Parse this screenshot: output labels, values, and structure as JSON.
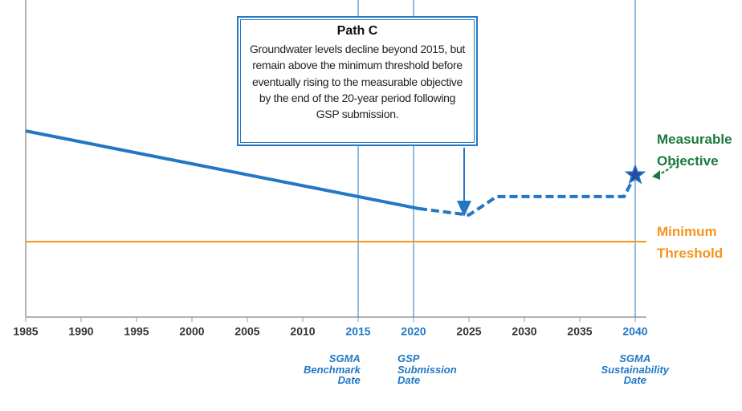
{
  "chart_data": {
    "type": "line",
    "xlim": [
      1985,
      2040
    ],
    "ylim": [
      0,
      100
    ],
    "xticks": [
      1985,
      1990,
      1995,
      2000,
      2005,
      2010,
      2015,
      2020,
      2025,
      2030,
      2035,
      2040
    ],
    "highlight_ticks": [
      2015,
      2020,
      2040
    ],
    "series": [
      {
        "color": "#2278c4",
        "dashed": false,
        "x": [
          1985,
          2020.5
        ],
        "values": [
          58.7,
          34.2
        ]
      },
      {
        "color": "#2278c4",
        "dashed": true,
        "x": [
          2020.5,
          2025,
          2027.5,
          2039,
          2040
        ],
        "values": [
          34.2,
          32.2,
          38,
          38,
          44.8
        ]
      }
    ],
    "threshold": {
      "label": "Minimum Threshold",
      "value": 23.8,
      "color": "#f7941d"
    },
    "objective": {
      "label": "Measurable Objective",
      "color": "#1b7a3e"
    },
    "milestones": [
      {
        "x": 2015,
        "label": "SGMA Benchmark Date",
        "align": "right"
      },
      {
        "x": 2020,
        "label": "GSP Submission Date",
        "align": "left"
      },
      {
        "x": 2040,
        "label": "SGMA Sustainability Date",
        "align": "center"
      }
    ],
    "callout": {
      "title": "Path C",
      "text": "Groundwater levels decline beyond 2015, but remain above the minimum threshold before eventually rising to the measurable objective by the end of the 20-year period following GSP submission."
    }
  }
}
